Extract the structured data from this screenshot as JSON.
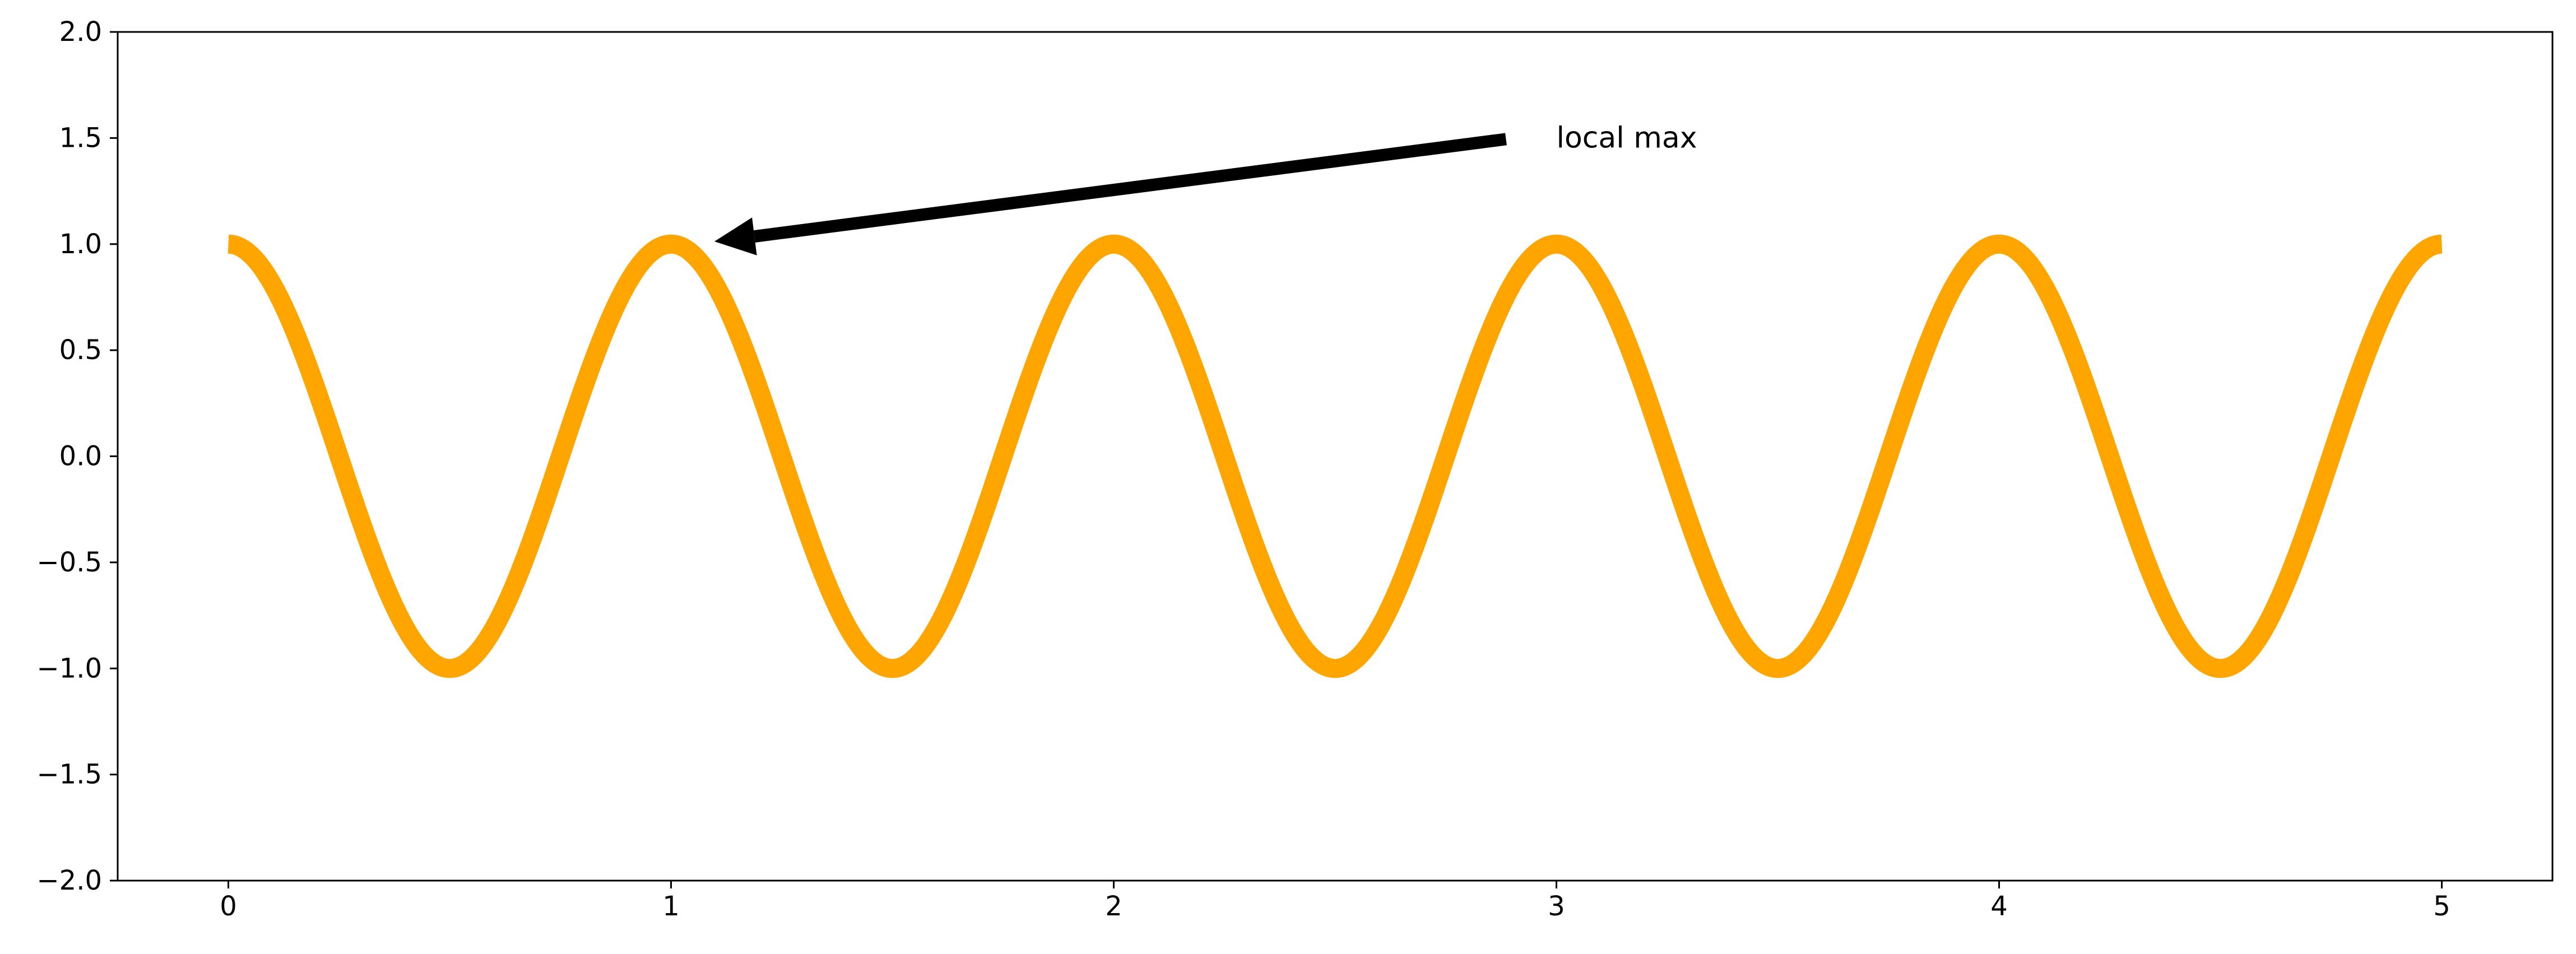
{
  "chart_data": {
    "type": "line",
    "title": "",
    "xlabel": "",
    "ylabel": "",
    "xlim": [
      -0.25,
      5.25
    ],
    "ylim": [
      -2.0,
      2.0
    ],
    "grid": false,
    "x_ticks": [
      0,
      1,
      2,
      3,
      4,
      5
    ],
    "x_tick_labels": [
      "0",
      "1",
      "2",
      "3",
      "4",
      "5"
    ],
    "y_ticks": [
      -2.0,
      -1.5,
      -1.0,
      -0.5,
      0.0,
      0.5,
      1.0,
      1.5,
      2.0
    ],
    "y_tick_labels": [
      "−2.0",
      "−1.5",
      "−1.0",
      "−0.5",
      "0.0",
      "0.5",
      "1.0",
      "1.5",
      "2.0"
    ],
    "series": [
      {
        "function": "cos(2*pi*x)",
        "x_start": 0,
        "x_end": 5,
        "color": "#FFA500",
        "x": [
          0,
          0.25,
          0.5,
          0.75,
          1,
          1.25,
          1.5,
          1.75,
          2,
          2.25,
          2.5,
          2.75,
          3,
          3.25,
          3.5,
          3.75,
          4,
          4.25,
          4.5,
          4.75,
          5
        ],
        "y": [
          1,
          0,
          -1,
          0,
          1,
          0,
          -1,
          0,
          1,
          0,
          -1,
          0,
          1,
          0,
          -1,
          0,
          1,
          0,
          -1,
          0,
          1
        ]
      }
    ],
    "annotations": [
      {
        "text": "local max",
        "xy": [
          1,
          1
        ],
        "xytext": [
          3,
          1.5
        ],
        "arrow_color": "#000000"
      }
    ]
  }
}
